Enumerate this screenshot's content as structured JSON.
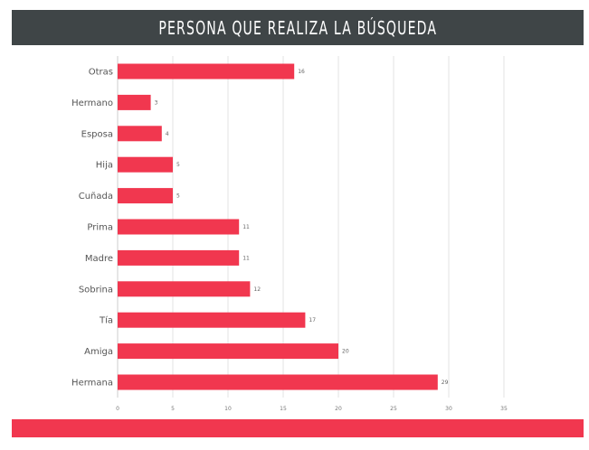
{
  "header": {
    "title": "PERSONA QUE REALIZA LA BÚSQUEDA"
  },
  "colors": {
    "header_bg": "#3f4547",
    "bar": "#f1374f",
    "footer_bar": "#f1374f",
    "grid": "#e3e3e3"
  },
  "chart_data": {
    "type": "bar",
    "orientation": "horizontal",
    "title": "PERSONA QUE REALIZA LA BÚSQUEDA",
    "categories": [
      "Otras",
      "Hermano",
      "Esposa",
      "Hija",
      "Cuñada",
      "Prima",
      "Madre",
      "Sobrina",
      "Tía",
      "Amiga",
      "Hermana"
    ],
    "values": [
      16,
      3,
      4,
      5,
      5,
      11,
      11,
      12,
      17,
      20,
      29
    ],
    "xlim": [
      0,
      35
    ],
    "xticks": [
      "0",
      "5",
      "10",
      "15",
      "20",
      "25",
      "30",
      "35"
    ],
    "xlabel": "",
    "ylabel": "",
    "grid": true,
    "data_labels": true
  }
}
